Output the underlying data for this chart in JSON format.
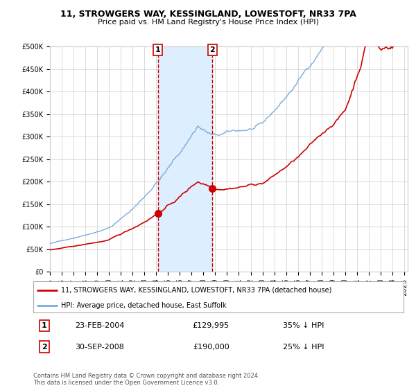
{
  "title": "11, STROWGERS WAY, KESSINGLAND, LOWESTOFT, NR33 7PA",
  "subtitle": "Price paid vs. HM Land Registry's House Price Index (HPI)",
  "legend_line1": "11, STROWGERS WAY, KESSINGLAND, LOWESTOFT, NR33 7PA (detached house)",
  "legend_line2": "HPI: Average price, detached house, East Suffolk",
  "transaction1_date": "23-FEB-2004",
  "transaction1_price": "£129,995",
  "transaction1_hpi": "35% ↓ HPI",
  "transaction2_date": "30-SEP-2008",
  "transaction2_price": "£190,000",
  "transaction2_hpi": "25% ↓ HPI",
  "footnote": "Contains HM Land Registry data © Crown copyright and database right 2024.\nThis data is licensed under the Open Government Licence v3.0.",
  "hpi_color": "#7aabdb",
  "price_color": "#cc0000",
  "marker_color": "#cc0000",
  "shade_color": "#ddeeff",
  "vline_color": "#cc0000",
  "background_color": "#ffffff",
  "grid_color": "#cccccc",
  "ylim": [
    0,
    500000
  ],
  "yticks": [
    0,
    50000,
    100000,
    150000,
    200000,
    250000,
    300000,
    350000,
    400000,
    450000,
    500000
  ],
  "year_start": 1995,
  "year_end": 2025,
  "transaction1_year": 2004.14,
  "transaction2_year": 2008.75
}
